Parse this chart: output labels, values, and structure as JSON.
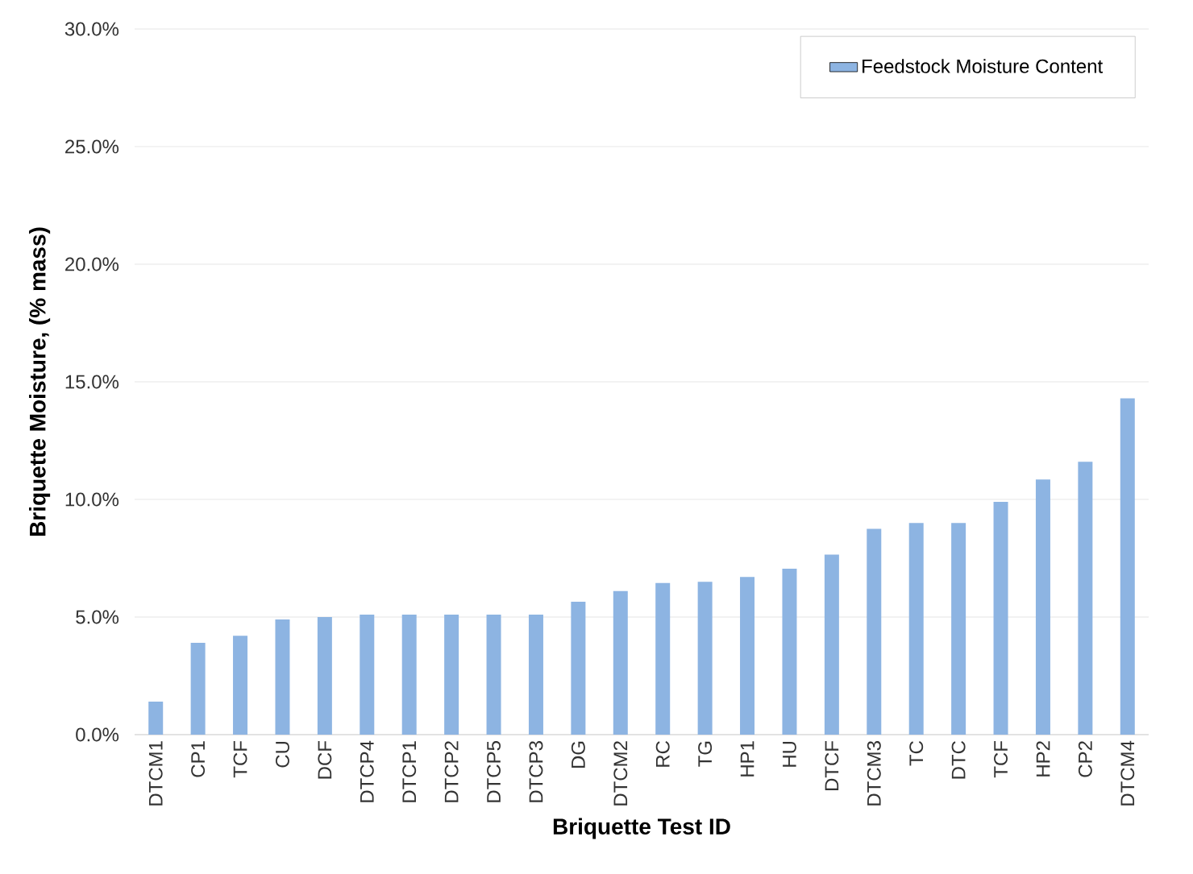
{
  "chart_data": {
    "type": "bar",
    "xlabel": "Briquette Test ID",
    "ylabel": "Briquette Moisture, (% mass)",
    "categories": [
      "DTCM1",
      "CP1",
      "TCF",
      "CU",
      "DCF",
      "DTCP4",
      "DTCP1",
      "DTCP2",
      "DTCP5",
      "DTCP3",
      "DG",
      "DTCM2",
      "RC",
      "TG",
      "HP1",
      "HU",
      "DTCF",
      "DTCM3",
      "TC",
      "DTC",
      "TCF",
      "HP2",
      "CP2",
      "DTCM4"
    ],
    "series": [
      {
        "name": "Feedstock Moisture Content",
        "color": "#8db4e2",
        "values": [
          1.4,
          3.9,
          4.2,
          4.9,
          5.0,
          5.1,
          5.1,
          5.1,
          5.1,
          5.1,
          5.65,
          6.1,
          6.45,
          6.5,
          6.7,
          7.05,
          7.65,
          8.75,
          9.0,
          9.0,
          9.9,
          10.85,
          11.6,
          14.3
        ]
      }
    ],
    "ylim": [
      0,
      30
    ],
    "yticks": [
      {
        "value": 0,
        "label": "0.0%"
      },
      {
        "value": 5,
        "label": "5.0%"
      },
      {
        "value": 10,
        "label": "10.0%"
      },
      {
        "value": 15,
        "label": "15.0%"
      },
      {
        "value": 20,
        "label": "20.0%"
      },
      {
        "value": 25,
        "label": "25.0%"
      },
      {
        "value": 30,
        "label": "30.0%"
      }
    ],
    "grid": "y",
    "legend": "top right"
  }
}
